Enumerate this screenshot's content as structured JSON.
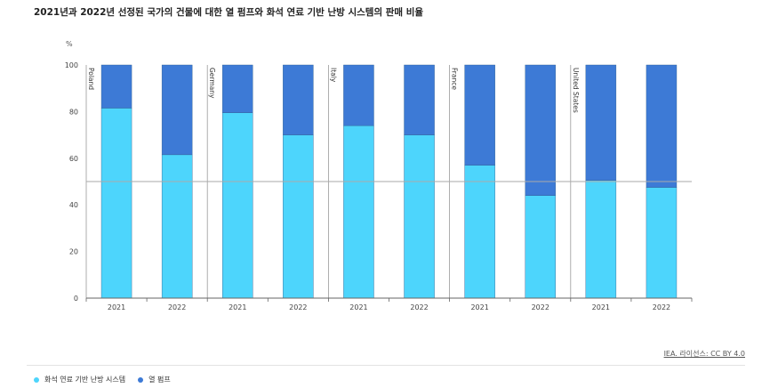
{
  "title": "2021년과 2022년 선정된 국가의 건물에 대한 열 펌프와 화석 연료 기반 난방 시스템의 판매 비율",
  "source": "IEA. 라이선스: CC BY 4.0",
  "colors": {
    "fossil": "#4dd5fc",
    "heat_pump": "#3d7ad6",
    "reference_line": "#aaaaaa",
    "separator": "#999999"
  },
  "chart_data": {
    "type": "bar",
    "stacked": true,
    "ylabel": "%",
    "ylim": [
      0,
      100
    ],
    "yticks": [
      0,
      20,
      40,
      60,
      80,
      100
    ],
    "reference_line": 50,
    "groups": [
      {
        "name": "Poland",
        "years": [
          "2021",
          "2022"
        ]
      },
      {
        "name": "Germany",
        "years": [
          "2021",
          "2022"
        ]
      },
      {
        "name": "Italy",
        "years": [
          "2021",
          "2022"
        ]
      },
      {
        "name": "France",
        "years": [
          "2021",
          "2022"
        ]
      },
      {
        "name": "United States",
        "years": [
          "2021",
          "2022"
        ]
      }
    ],
    "series": [
      {
        "name": "화석 연료 기반 난방 시스템",
        "color": "#4dd5fc",
        "values": [
          81.5,
          61.5,
          79.5,
          70,
          74,
          70,
          57,
          44,
          50.5,
          47.5
        ]
      },
      {
        "name": "열 펌프",
        "color": "#3d7ad6",
        "values": [
          18.5,
          38.5,
          20.5,
          30,
          26,
          30,
          43,
          56,
          49.5,
          52.5
        ]
      }
    ]
  }
}
